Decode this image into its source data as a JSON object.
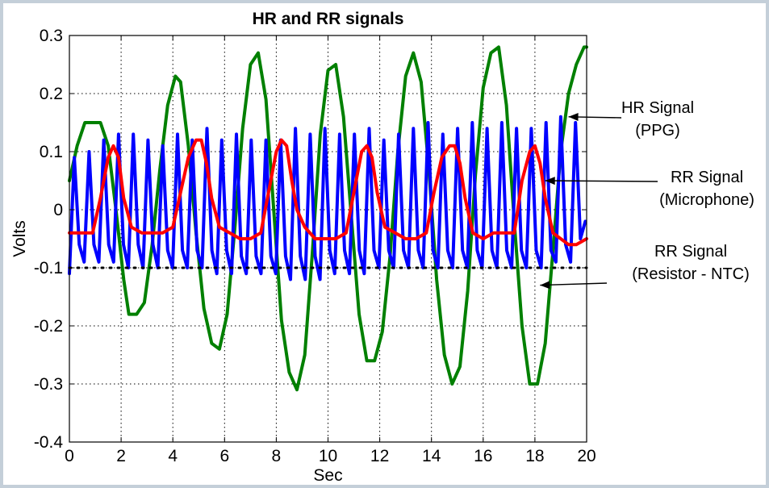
{
  "chart_data": {
    "type": "line",
    "title": "HR and RR signals",
    "xlabel": "Sec",
    "ylabel": "Volts",
    "xlim": [
      0,
      20
    ],
    "ylim": [
      -0.4,
      0.3
    ],
    "x_ticks": [
      "0",
      "2",
      "4",
      "6",
      "8",
      "10",
      "12",
      "14",
      "16",
      "18",
      "20"
    ],
    "y_ticks": [
      "0.3",
      "0.2",
      "0.1",
      "0",
      "-0.1",
      "-0.2",
      "-0.3",
      "-0.4"
    ],
    "grid": true,
    "series": [
      {
        "color": "#008000",
        "x": [
          0,
          0.3,
          0.6,
          0.9,
          1.2,
          1.5,
          1.8,
          2.1,
          2.3,
          2.6,
          2.9,
          3.2,
          3.5,
          3.8,
          4.1,
          4.3,
          4.6,
          4.9,
          5.2,
          5.5,
          5.8,
          6.1,
          6.4,
          6.7,
          7.0,
          7.3,
          7.6,
          7.9,
          8.2,
          8.5,
          8.8,
          9.1,
          9.4,
          9.7,
          10.0,
          10.3,
          10.6,
          10.9,
          11.2,
          11.5,
          11.8,
          12.1,
          12.4,
          12.7,
          13.0,
          13.3,
          13.6,
          13.9,
          14.2,
          14.5,
          14.8,
          15.1,
          15.4,
          15.7,
          16.0,
          16.3,
          16.6,
          16.9,
          17.2,
          17.5,
          17.8,
          18.1,
          18.4,
          18.7,
          19.0,
          19.3,
          19.6,
          19.9,
          20.0
        ],
        "values": [
          0.05,
          0.11,
          0.15,
          0.15,
          0.15,
          0.11,
          0.0,
          -0.12,
          -0.18,
          -0.18,
          -0.16,
          -0.06,
          0.07,
          0.18,
          0.23,
          0.22,
          0.11,
          -0.04,
          -0.17,
          -0.23,
          -0.24,
          -0.18,
          -0.03,
          0.14,
          0.25,
          0.27,
          0.19,
          0.0,
          -0.19,
          -0.28,
          -0.31,
          -0.25,
          -0.07,
          0.13,
          0.24,
          0.25,
          0.16,
          -0.01,
          -0.18,
          -0.26,
          -0.26,
          -0.21,
          -0.08,
          0.1,
          0.23,
          0.27,
          0.22,
          0.07,
          -0.12,
          -0.25,
          -0.3,
          -0.27,
          -0.14,
          0.06,
          0.21,
          0.27,
          0.28,
          0.18,
          -0.02,
          -0.2,
          -0.3,
          -0.3,
          -0.23,
          -0.07,
          0.1,
          0.2,
          0.25,
          0.28,
          0.28
        ]
      },
      {
        "color": "#0000ff",
        "x": [
          0.0,
          0.19,
          0.38,
          0.57,
          0.76,
          0.95,
          1.14,
          1.33,
          1.52,
          1.71,
          1.9,
          2.09,
          2.28,
          2.47,
          2.66,
          2.85,
          3.04,
          3.23,
          3.42,
          3.61,
          3.8,
          3.99,
          4.18,
          4.37,
          4.56,
          4.75,
          4.94,
          5.13,
          5.32,
          5.51,
          5.7,
          5.89,
          6.08,
          6.27,
          6.46,
          6.65,
          6.84,
          7.03,
          7.22,
          7.41,
          7.6,
          7.79,
          7.98,
          8.17,
          8.36,
          8.55,
          8.74,
          8.93,
          9.12,
          9.31,
          9.5,
          9.69,
          9.88,
          10.07,
          10.26,
          10.45,
          10.64,
          10.83,
          11.02,
          11.21,
          11.4,
          11.59,
          11.78,
          11.97,
          12.16,
          12.35,
          12.54,
          12.73,
          12.92,
          13.11,
          13.3,
          13.49,
          13.68,
          13.87,
          14.06,
          14.25,
          14.44,
          14.63,
          14.82,
          15.01,
          15.2,
          15.39,
          15.58,
          15.77,
          15.96,
          16.15,
          16.34,
          16.53,
          16.72,
          16.91,
          17.1,
          17.29,
          17.48,
          17.67,
          17.86,
          18.05,
          18.24,
          18.43,
          18.62,
          18.81,
          19.0,
          19.19,
          19.38,
          19.57,
          19.76,
          19.95
        ],
        "values": [
          -0.11,
          0.09,
          -0.06,
          -0.09,
          0.1,
          -0.06,
          -0.09,
          0.12,
          -0.06,
          -0.09,
          0.13,
          -0.06,
          -0.1,
          0.13,
          -0.06,
          -0.1,
          0.12,
          -0.06,
          -0.1,
          0.11,
          -0.07,
          -0.1,
          0.13,
          -0.07,
          -0.1,
          0.12,
          -0.07,
          -0.1,
          0.14,
          -0.07,
          -0.11,
          0.12,
          -0.07,
          -0.11,
          0.13,
          -0.08,
          -0.11,
          0.12,
          -0.08,
          -0.11,
          0.12,
          -0.08,
          -0.11,
          0.12,
          -0.08,
          -0.12,
          0.14,
          -0.08,
          -0.12,
          0.13,
          -0.08,
          -0.12,
          0.14,
          -0.07,
          -0.11,
          0.13,
          -0.07,
          -0.11,
          0.13,
          -0.07,
          -0.11,
          0.14,
          -0.07,
          -0.1,
          0.12,
          -0.07,
          -0.1,
          0.13,
          -0.07,
          -0.1,
          0.14,
          -0.07,
          -0.1,
          0.15,
          -0.07,
          -0.1,
          0.13,
          -0.07,
          -0.1,
          0.14,
          -0.07,
          -0.1,
          0.15,
          -0.07,
          -0.1,
          0.14,
          -0.07,
          -0.1,
          0.15,
          -0.07,
          -0.1,
          0.14,
          -0.07,
          -0.1,
          0.14,
          -0.07,
          -0.1,
          0.15,
          -0.07,
          -0.09,
          0.16,
          -0.06,
          -0.09,
          0.15,
          -0.05,
          -0.02
        ]
      },
      {
        "color": "#ff0000",
        "x": [
          0,
          0.5,
          0.9,
          1.2,
          1.5,
          1.7,
          1.9,
          2.1,
          2.4,
          2.8,
          3.2,
          3.6,
          4.0,
          4.3,
          4.6,
          4.9,
          5.1,
          5.3,
          5.5,
          5.8,
          6.2,
          6.6,
          7.0,
          7.4,
          7.7,
          8.0,
          8.2,
          8.4,
          8.6,
          8.8,
          9.1,
          9.5,
          9.9,
          10.3,
          10.7,
          11.0,
          11.3,
          11.5,
          11.7,
          11.9,
          12.2,
          12.6,
          13.0,
          13.4,
          13.8,
          14.1,
          14.4,
          14.7,
          14.9,
          15.1,
          15.3,
          15.6,
          16.0,
          16.4,
          16.8,
          17.2,
          17.5,
          17.8,
          18.0,
          18.2,
          18.4,
          18.7,
          19.0,
          19.3,
          19.6,
          20.0
        ],
        "values": [
          -0.04,
          -0.04,
          -0.04,
          0.02,
          0.09,
          0.11,
          0.09,
          0.02,
          -0.03,
          -0.04,
          -0.04,
          -0.04,
          -0.03,
          0.03,
          0.09,
          0.12,
          0.12,
          0.08,
          0.02,
          -0.03,
          -0.04,
          -0.05,
          -0.05,
          -0.04,
          0.03,
          0.1,
          0.12,
          0.11,
          0.05,
          0.0,
          -0.03,
          -0.05,
          -0.05,
          -0.05,
          -0.04,
          0.03,
          0.1,
          0.11,
          0.09,
          0.03,
          -0.03,
          -0.04,
          -0.05,
          -0.05,
          -0.04,
          0.03,
          0.09,
          0.11,
          0.11,
          0.08,
          0.02,
          -0.04,
          -0.05,
          -0.04,
          -0.04,
          -0.04,
          0.05,
          0.1,
          0.11,
          0.08,
          0.02,
          -0.04,
          -0.05,
          -0.06,
          -0.06,
          -0.05
        ]
      },
      {
        "color": "#000000",
        "style": "dotted",
        "x": [
          0,
          20
        ],
        "values": [
          -0.1,
          -0.1
        ]
      }
    ],
    "annotations": [
      {
        "lines": [
          "HR Signal",
          "(PPG)"
        ],
        "target": [
          19.3,
          0.16
        ]
      },
      {
        "lines": [
          "RR Signal",
          "(Microphone)"
        ],
        "target": [
          18.4,
          0.05
        ]
      },
      {
        "lines": [
          "RR Signal",
          "(Resistor - NTC)"
        ],
        "target": [
          18.2,
          -0.13
        ]
      }
    ]
  }
}
